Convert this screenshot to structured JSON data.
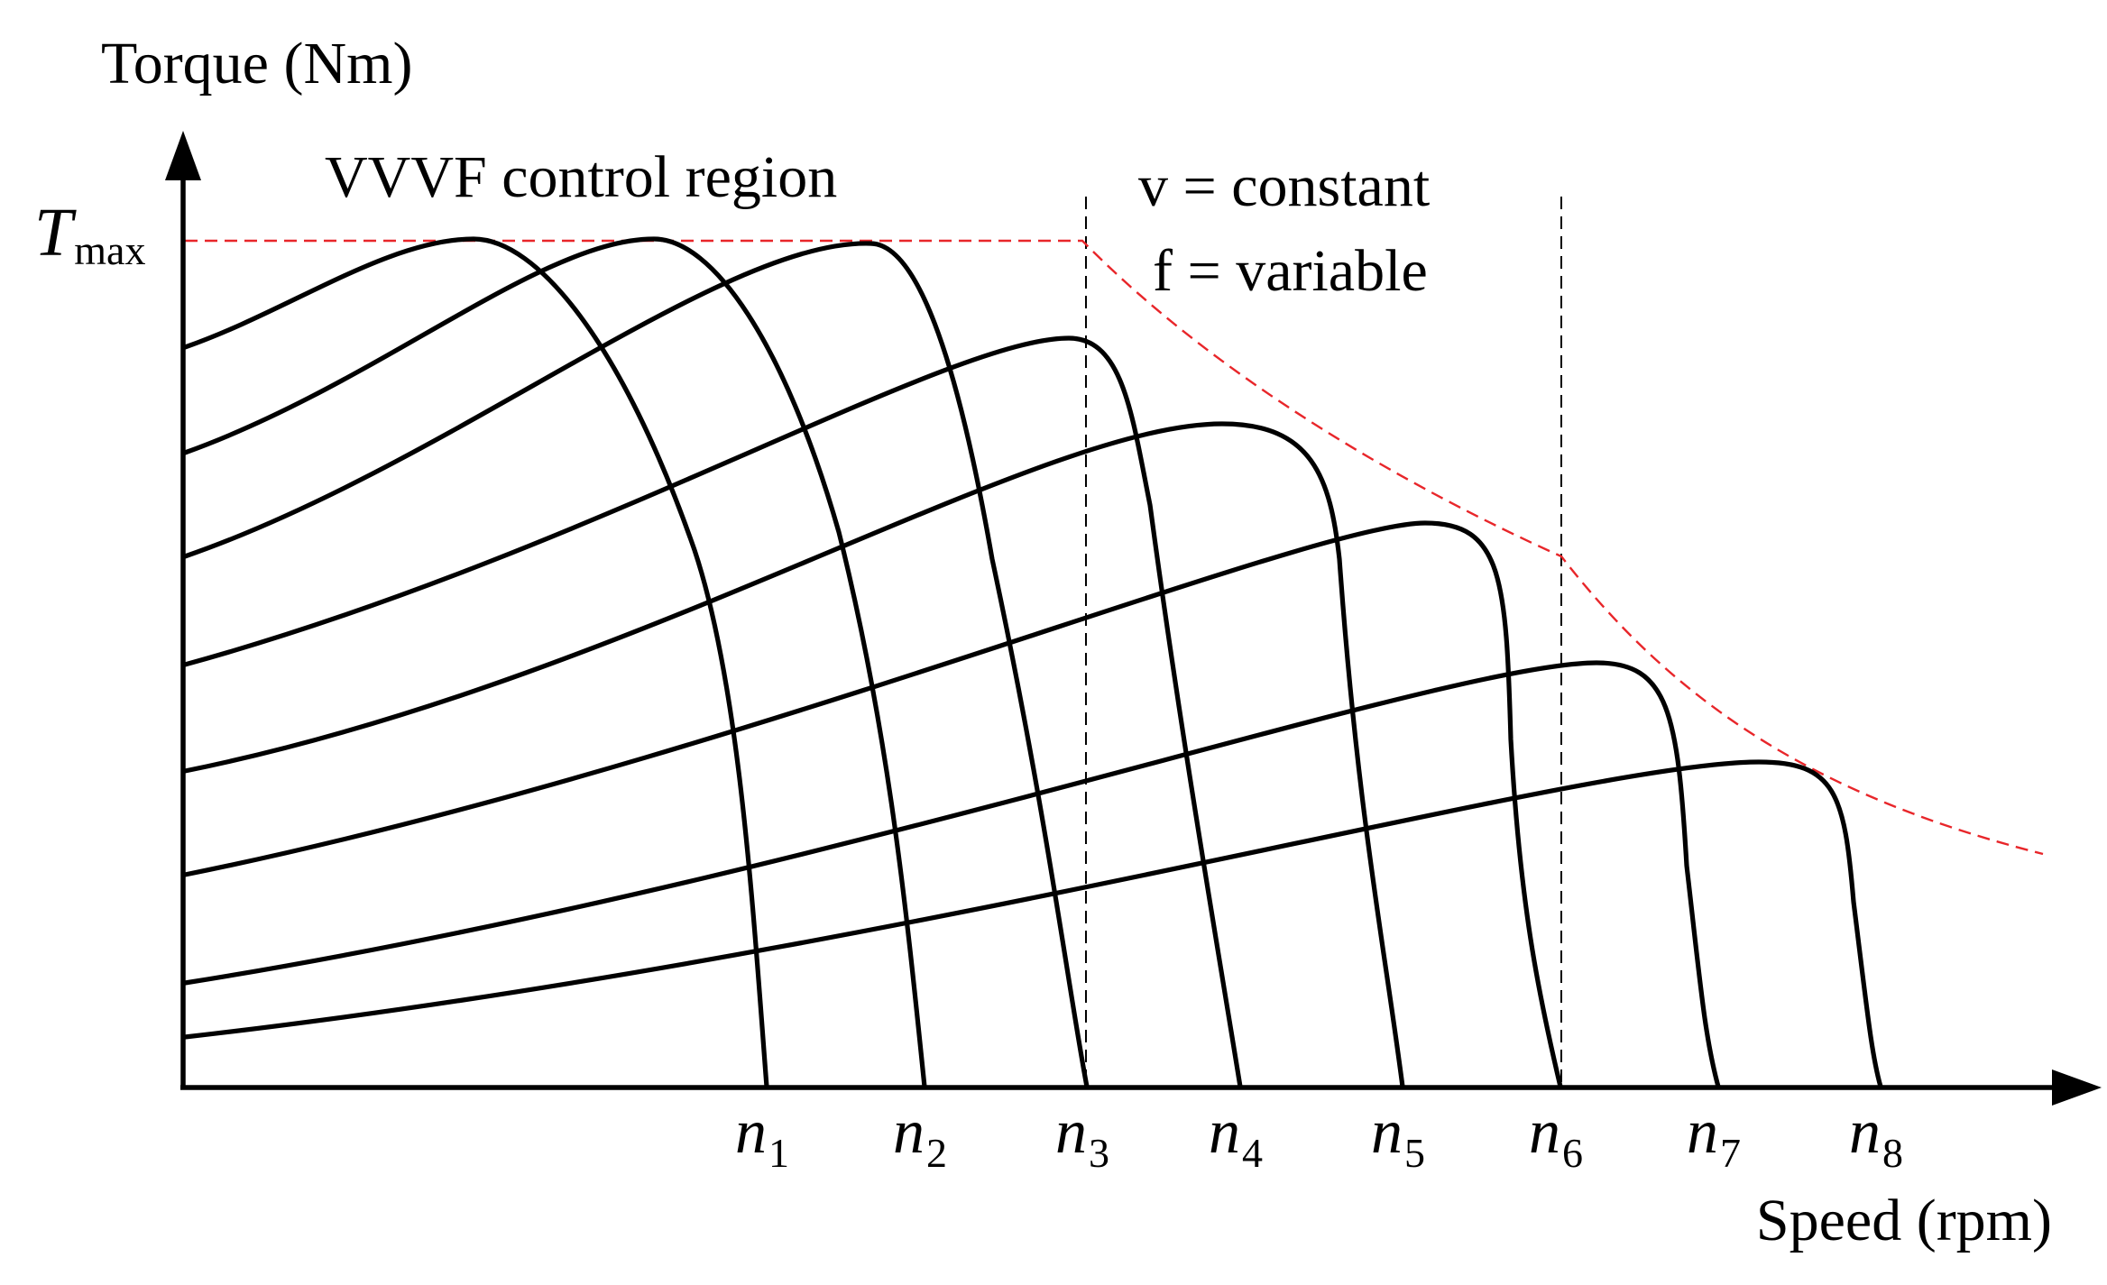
{
  "labels": {
    "y_axis": "Torque (Nm)",
    "x_axis": "Speed (rpm)",
    "region_vvvf": "VVVF control region",
    "region_const_v": "v = constant",
    "region_var_f": "f = variable",
    "tmax_symbol": "T",
    "tmax_subscript": "max"
  },
  "speed_ticks": [
    {
      "symbol": "n",
      "sub": "1"
    },
    {
      "symbol": "n",
      "sub": "2"
    },
    {
      "symbol": "n",
      "sub": "3"
    },
    {
      "symbol": "n",
      "sub": "4"
    },
    {
      "symbol": "n",
      "sub": "5"
    },
    {
      "symbol": "n",
      "sub": "6"
    },
    {
      "symbol": "n",
      "sub": "7"
    },
    {
      "symbol": "n",
      "sub": "8"
    }
  ],
  "colors": {
    "curves": "#000000",
    "limit_line": "#e8262a",
    "guide_lines": "#000000"
  }
}
